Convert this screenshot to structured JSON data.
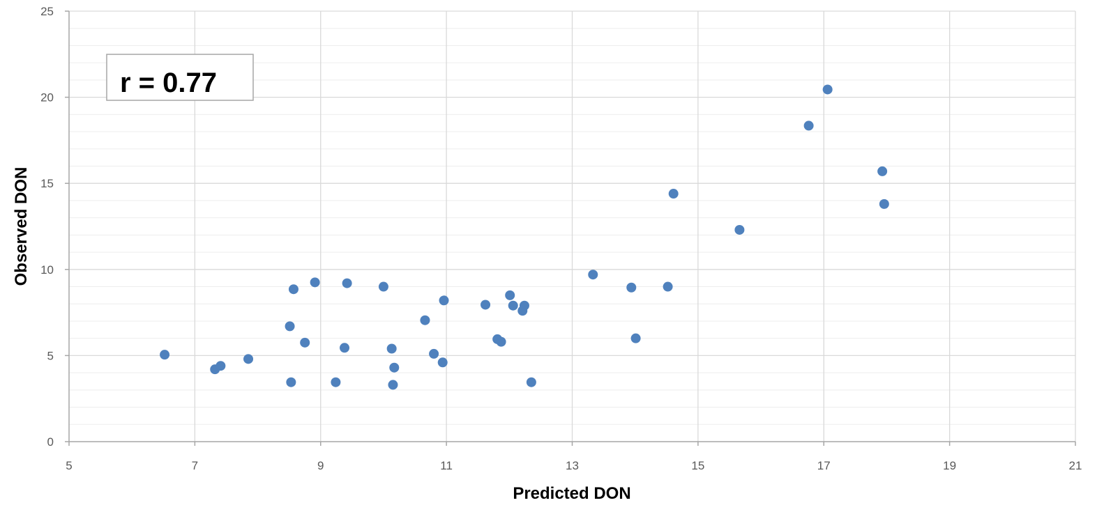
{
  "chart_data": {
    "type": "scatter",
    "title": "",
    "xlabel": "Predicted DON",
    "ylabel": "Observed DON",
    "xlim": [
      5,
      21
    ],
    "ylim": [
      0,
      25
    ],
    "x_ticks": [
      "5",
      "7",
      "9",
      "11",
      "13",
      "15",
      "17",
      "19",
      "21"
    ],
    "y_ticks": [
      "0",
      "5",
      "10",
      "15",
      "20",
      "25"
    ],
    "grid": true,
    "legend": "none",
    "annotation": "r = 0.77",
    "marker_color": "#4f81bd",
    "series": [
      {
        "points": [
          [
            6.52,
            5.05
          ],
          [
            7.32,
            4.2
          ],
          [
            7.41,
            4.4
          ],
          [
            7.85,
            4.8
          ],
          [
            8.51,
            6.7
          ],
          [
            8.53,
            3.45
          ],
          [
            8.57,
            8.85
          ],
          [
            8.75,
            5.75
          ],
          [
            8.91,
            9.25
          ],
          [
            9.24,
            3.45
          ],
          [
            9.38,
            5.45
          ],
          [
            9.42,
            9.2
          ],
          [
            10.0,
            9.0
          ],
          [
            10.13,
            5.4
          ],
          [
            10.15,
            3.3
          ],
          [
            10.17,
            4.3
          ],
          [
            10.66,
            7.05
          ],
          [
            10.8,
            5.1
          ],
          [
            10.94,
            4.6
          ],
          [
            10.96,
            8.2
          ],
          [
            11.62,
            7.95
          ],
          [
            11.81,
            5.95
          ],
          [
            11.87,
            5.8
          ],
          [
            12.01,
            8.5
          ],
          [
            12.06,
            7.9
          ],
          [
            12.21,
            7.6
          ],
          [
            12.24,
            7.9
          ],
          [
            12.35,
            3.45
          ],
          [
            13.33,
            9.7
          ],
          [
            13.94,
            8.95
          ],
          [
            14.01,
            6.0
          ],
          [
            14.52,
            9.0
          ],
          [
            14.61,
            14.4
          ],
          [
            15.66,
            12.3
          ],
          [
            16.76,
            18.35
          ],
          [
            17.06,
            20.45
          ],
          [
            17.93,
            15.7
          ],
          [
            17.96,
            13.8
          ]
        ]
      }
    ]
  }
}
